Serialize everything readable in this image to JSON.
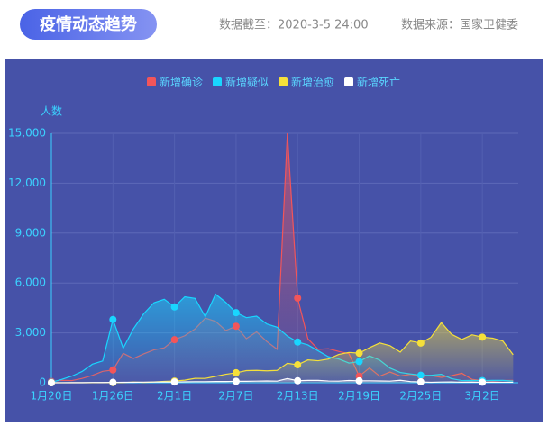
{
  "header": {
    "title": "疫情动态趋势",
    "date_label": "数据截至：2020-3-5 24:00",
    "source_label": "数据来源：国家卫健委"
  },
  "chart_data": {
    "type": "line",
    "y_label": "人数",
    "categories": [
      "1月20日",
      null,
      null,
      null,
      null,
      null,
      "1月26日",
      null,
      null,
      null,
      null,
      null,
      "2月1日",
      null,
      null,
      null,
      null,
      null,
      "2月7日",
      null,
      null,
      null,
      null,
      null,
      "2月13日",
      null,
      null,
      null,
      null,
      null,
      "2月19日",
      null,
      null,
      null,
      null,
      null,
      "2月25日",
      null,
      null,
      null,
      null,
      null,
      "3月2日",
      null,
      null,
      null
    ],
    "ylim": [
      0,
      15000
    ],
    "yticks": [
      0,
      {
        "value": 3000,
        "label": "3,000"
      },
      {
        "value": 6000,
        "label": "6,000"
      },
      {
        "value": 9000,
        "label": "9,000"
      },
      {
        "value": 12000,
        "label": "12,000"
      },
      {
        "value": 15000,
        "label": "15,000"
      }
    ],
    "grid": true,
    "series": [
      {
        "name": "新增确诊",
        "color": "#f2555a",
        "values": [
          77,
          149,
          131,
          259,
          444,
          688,
          769,
          1771,
          1459,
          1737,
          1982,
          2102,
          2590,
          2829,
          3235,
          3887,
          3694,
          3143,
          3399,
          2656,
          3062,
          2478,
          2015,
          15000,
          5090,
          2641,
          2009,
          2048,
          1886,
          1749,
          394,
          889,
          397,
          648,
          409,
          508,
          406,
          433,
          327,
          427,
          573,
          202,
          125,
          119,
          139,
          143
        ]
      },
      {
        "name": "新增疑似",
        "color": "#19d6ff",
        "values": [
          27,
          200,
          400,
          680,
          1118,
          1309,
          3806,
          2077,
          3248,
          4148,
          4812,
          5019,
          4562,
          5173,
          5072,
          3971,
          5328,
          4833,
          4214,
          3916,
          4008,
          3536,
          3342,
          2807,
          2450,
          2277,
          1918,
          1563,
          1432,
          1185,
          1277,
          1614,
          1361,
          882,
          620,
          530,
          452,
          451,
          509,
          248,
          132,
          141,
          129,
          143,
          143,
          102
        ]
      },
      {
        "name": "新增治愈",
        "color": "#f5e03a",
        "values": [
          0,
          0,
          0,
          0,
          3,
          5,
          9,
          10,
          43,
          21,
          47,
          85,
          104,
          157,
          262,
          261,
          387,
          510,
          600,
          731,
          744,
          716,
          744,
          1171,
          1081,
          1373,
          1323,
          1425,
          1701,
          1824,
          1779,
          2109,
          2393,
          2231,
          1845,
          2509,
          2387,
          2736,
          3622,
          2918,
          2603,
          2885,
          2743,
          2684,
          2507,
          1683
        ]
      },
      {
        "name": "新增死亡",
        "color": "#ffffff",
        "values": [
          0,
          3,
          8,
          8,
          16,
          15,
          24,
          26,
          26,
          38,
          43,
          46,
          45,
          57,
          64,
          65,
          73,
          73,
          86,
          89,
          97,
          108,
          97,
          254,
          121,
          143,
          142,
          105,
          98,
          136,
          114,
          118,
          109,
          97,
          150,
          71,
          52,
          29,
          44,
          47,
          35,
          42,
          31,
          38,
          31,
          30
        ]
      }
    ]
  }
}
